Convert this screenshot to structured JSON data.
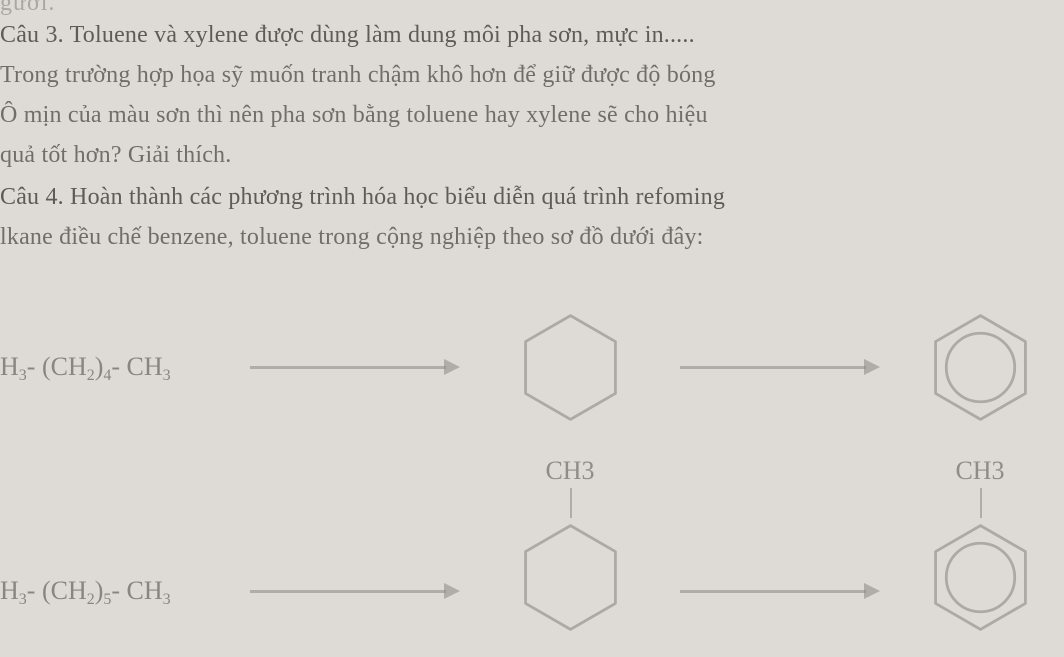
{
  "colors": {
    "paper_bg": "#dedbd6",
    "text_main": "#5f5b58",
    "text_faint": "#7b7673",
    "hex_stroke": "#8e8a86",
    "arrow": "#8a8683",
    "bond": "#8a8683",
    "formula": "#6d6965",
    "label": "#706c68"
  },
  "top_cut": "gươi.",
  "cau3": {
    "l1": "Câu 3. Toluene và xylene được dùng làm dung môi pha sơn, mực in.....",
    "l2": "Trong trường hợp họa sỹ muốn tranh chậm khô hơn để giữ được độ bóng",
    "l3": "Ô mịn của màu sơn thì nên pha sơn bằng toluene hay xylene sẽ cho hiệu",
    "l4": "quả tốt hơn?  Giải thích."
  },
  "cau4": {
    "l1": "Câu 4. Hoàn thành các phương trình hóa học biểu diễn quá trình refoming",
    "l2": "lkane điều chế benzene, toluene trong cộng nghiệp theo sơ đồ dưới đây:"
  },
  "reactions": {
    "row1": {
      "formula_parts": [
        "H",
        "3",
        " - (CH",
        "2",
        ")",
        "4",
        " - CH",
        "3"
      ],
      "product_label": ""
    },
    "row2": {
      "formula_parts": [
        "H",
        "3",
        " - (CH",
        "2",
        ")",
        "5",
        " - CH",
        "3"
      ],
      "mid_label": "CH3",
      "prod_label": "CH3"
    }
  },
  "geometry": {
    "hex_side": 52,
    "hex_stroke_w": 2.8,
    "circle_r_ratio": 0.66,
    "arrow_len_short": 210,
    "arrow_len_mid": 200
  }
}
